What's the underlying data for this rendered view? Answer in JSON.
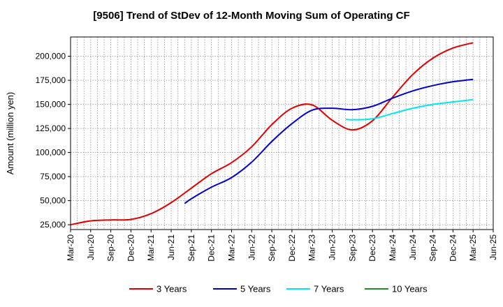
{
  "chart_data": {
    "type": "line",
    "title": "[9506]  Trend of StDev of 12-Month Moving Sum of Operating CF",
    "xlabel": "",
    "ylabel": "Amount (million yen)",
    "ylim": [
      20000,
      220000
    ],
    "yticks": [
      25000,
      50000,
      75000,
      100000,
      125000,
      150000,
      175000,
      200000
    ],
    "ytick_labels": [
      "25,000",
      "50,000",
      "75,000",
      "100,000",
      "125,000",
      "150,000",
      "175,000",
      "200,000"
    ],
    "x_categories": [
      "Mar-20",
      "Jun-20",
      "Sep-20",
      "Dec-20",
      "Mar-21",
      "Jun-21",
      "Sep-21",
      "Dec-21",
      "Mar-22",
      "Jun-22",
      "Sep-22",
      "Dec-22",
      "Mar-23",
      "Jun-23",
      "Sep-23",
      "Dec-23",
      "Mar-24",
      "Jun-24",
      "Sep-24",
      "Dec-24",
      "Mar-25",
      "Jun-25"
    ],
    "grid": true,
    "legend_position": "bottom",
    "series": [
      {
        "name": "3 Years",
        "color": "#e00000",
        "start_index": 0,
        "values": [
          25000,
          29000,
          30000,
          30500,
          36500,
          48000,
          63000,
          78000,
          89500,
          106000,
          129000,
          146000,
          149500,
          133500,
          123500,
          133000,
          157500,
          181000,
          198000,
          208500,
          214000
        ]
      },
      {
        "name": "5 Years",
        "color": "#0000cc",
        "start_index": 5.67,
        "values_x": [
          5.67,
          6,
          7,
          8,
          9,
          10,
          11,
          12,
          13,
          14,
          15,
          16,
          17,
          18,
          19,
          20
        ],
        "values": [
          47000,
          52000,
          64000,
          74000,
          90000,
          111500,
          130000,
          144000,
          146000,
          144500,
          148000,
          156500,
          164000,
          169500,
          173500,
          176000
        ]
      },
      {
        "name": "7 Years",
        "color": "#00e5ee",
        "values_x": [
          13.67,
          14,
          15,
          16,
          17,
          18,
          19,
          20
        ],
        "values": [
          134500,
          134000,
          135000,
          140500,
          146000,
          150000,
          152500,
          155000
        ]
      },
      {
        "name": "10 Years",
        "color": "#228b22",
        "values_x": [],
        "values": []
      }
    ]
  }
}
